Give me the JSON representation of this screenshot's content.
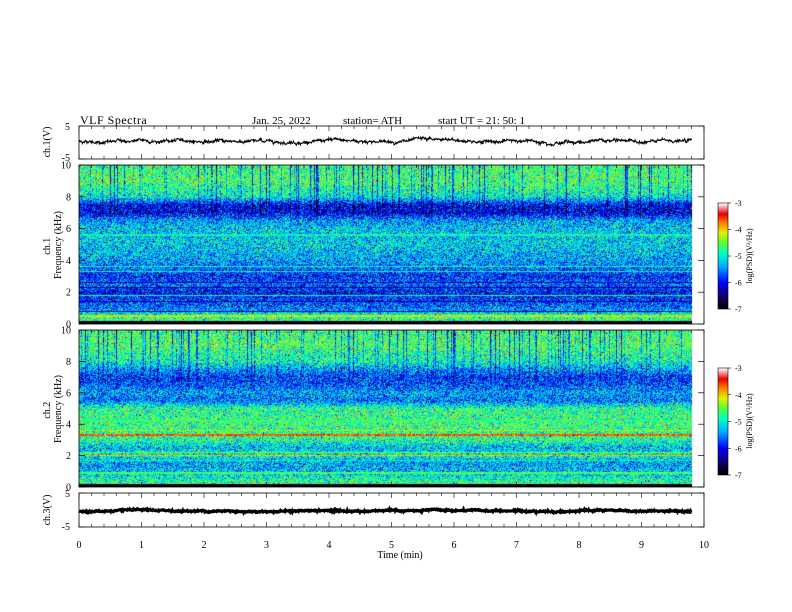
{
  "header": {
    "title": "VLF  Spectra",
    "date": "Jan. 25, 2022",
    "station": "station= ATH",
    "start": "start  UT  =   21: 50: 1"
  },
  "chart_data": [
    {
      "type": "line",
      "name": "ch1-waveform",
      "ylabel": "ch.1(V)",
      "ylim": [
        -5,
        5
      ],
      "yticks": [
        "5",
        "-5"
      ],
      "xlim": [
        0,
        10
      ],
      "signal": {
        "mean": 0.4,
        "amplitude": 0.6,
        "duration_min": 9.8
      },
      "line_color": "#000000"
    },
    {
      "type": "heatmap",
      "name": "ch1-spectrogram",
      "ylabel": "ch.1\nFrequency (kHz)",
      "ylim": [
        0,
        10
      ],
      "yticks": [
        "0",
        "2",
        "4",
        "6",
        "8",
        "10"
      ],
      "xlim": [
        0,
        10
      ],
      "duration_min": 9.8,
      "colorbar": {
        "label": "log(PSD)(V²/Hz)",
        "range": [
          -7,
          -3
        ],
        "ticks": [
          "-3",
          "-4",
          "-5",
          "-6",
          "-7"
        ]
      },
      "profile": [
        [
          0,
          -4.6
        ],
        [
          0.5,
          -4.8
        ],
        [
          1,
          -5.6
        ],
        [
          1.5,
          -5.8
        ],
        [
          2,
          -6.0
        ],
        [
          2.5,
          -5.6
        ],
        [
          3,
          -5.9
        ],
        [
          3.5,
          -5.6
        ],
        [
          4,
          -5.4
        ],
        [
          5,
          -5.2
        ],
        [
          6,
          -5.25
        ],
        [
          6.5,
          -5.4
        ],
        [
          7,
          -6.1
        ],
        [
          7.5,
          -6.0
        ],
        [
          8,
          -5.0
        ],
        [
          8.5,
          -4.8
        ],
        [
          9,
          -4.6
        ],
        [
          10,
          -4.7
        ]
      ],
      "lines": [
        {
          "f": 0.5,
          "v": -4.2
        },
        {
          "f": 0.8,
          "v": -6.3
        },
        {
          "f": 1.4,
          "v": -6.3
        },
        {
          "f": 1.8,
          "v": -4.9
        },
        {
          "f": 2.3,
          "v": -6.4
        },
        {
          "f": 2.6,
          "v": -6.2
        },
        {
          "f": 3.3,
          "v": -5.0
        },
        {
          "f": 3.6,
          "v": -4.9
        },
        {
          "f": 5.6,
          "v": -4.9
        }
      ]
    },
    {
      "type": "heatmap",
      "name": "ch2-spectrogram",
      "ylabel": "ch.2\nFrequency (kHz)",
      "ylim": [
        0,
        10
      ],
      "yticks": [
        "0",
        "2",
        "4",
        "6",
        "8",
        "10"
      ],
      "xlim": [
        0,
        10
      ],
      "duration_min": 9.8,
      "colorbar": {
        "label": "log(PSD)(V²/Hz)",
        "range": [
          -7,
          -3
        ],
        "ticks": [
          "-3",
          "-4",
          "-5",
          "-6",
          "-7"
        ]
      },
      "profile": [
        [
          0,
          -4.6
        ],
        [
          0.5,
          -4.9
        ],
        [
          1,
          -5.3
        ],
        [
          1.5,
          -5.4
        ],
        [
          2,
          -5.0
        ],
        [
          2.5,
          -5.3
        ],
        [
          3,
          -4.8
        ],
        [
          4,
          -4.7
        ],
        [
          5,
          -4.8
        ],
        [
          5.5,
          -5.6
        ],
        [
          6,
          -5.4
        ],
        [
          6.5,
          -5.7
        ],
        [
          7,
          -5.8
        ],
        [
          7.5,
          -5.4
        ],
        [
          8,
          -4.9
        ],
        [
          8.5,
          -4.8
        ],
        [
          9,
          -4.6
        ],
        [
          10,
          -4.7
        ]
      ],
      "lines": [
        {
          "f": 0.9,
          "v": -4.6
        },
        {
          "f": 1.7,
          "v": -5.0
        },
        {
          "f": 2.0,
          "v": -4.0
        },
        {
          "f": 2.2,
          "v": -4.5
        },
        {
          "f": 3.3,
          "v": -3.6
        },
        {
          "f": 3.6,
          "v": -4.3
        },
        {
          "f": 4.2,
          "v": -4.7
        }
      ]
    },
    {
      "type": "line",
      "name": "ch3-waveform",
      "ylabel": "ch.3(V)",
      "ylim": [
        -5,
        5
      ],
      "yticks": [
        "5",
        "-5"
      ],
      "xlim": [
        0,
        10
      ],
      "signal": {
        "mean": -0.3,
        "amplitude": 0.25,
        "duration_min": 9.8
      },
      "line_color": "#000000"
    }
  ],
  "x_axis": {
    "label": "Time  (min)",
    "ticks": [
      "0",
      "1",
      "2",
      "3",
      "4",
      "5",
      "6",
      "7",
      "8",
      "9",
      "10"
    ]
  }
}
